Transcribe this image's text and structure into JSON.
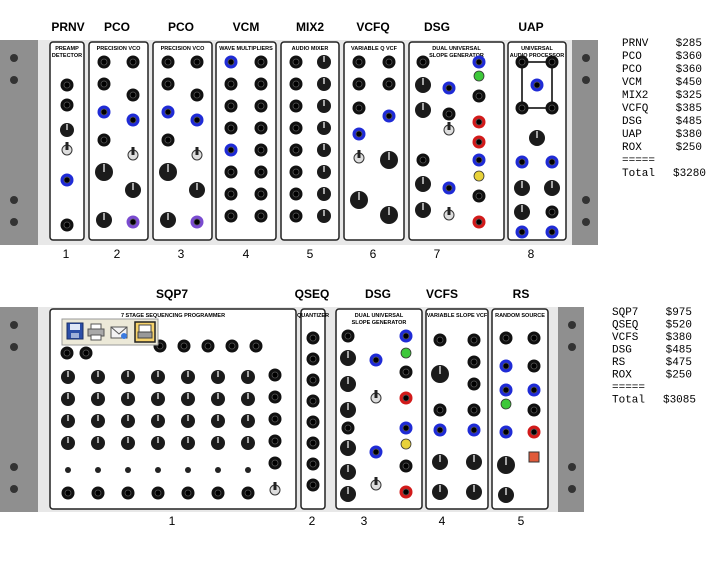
{
  "row1": {
    "module_labels": [
      "PRNV",
      "PCO",
      "PCO",
      "VCM",
      "MIX2",
      "VCFQ",
      "DSG",
      "UAP"
    ],
    "numbers": [
      "1",
      "2",
      "3",
      "4",
      "5",
      "6",
      "7",
      "8"
    ],
    "panel_titles": [
      [
        "PREAMP",
        "DETECTOR"
      ],
      [
        "PRECISION VCO"
      ],
      [
        "PRECISION VCO"
      ],
      [
        "WAVE MULTIPLIERS"
      ],
      [
        "AUDIO MIXER"
      ],
      [
        "VARIABLE Q VCF"
      ],
      [
        "DUAL UNIVERSAL",
        "SLOPE GENERATOR"
      ],
      [
        "UNIVERSAL",
        "AUDIO PROCESSOR"
      ]
    ],
    "price_list": [
      {
        "name": "PRNV",
        "price": "$285"
      },
      {
        "name": "PCO",
        "price": "$360"
      },
      {
        "name": "PCO",
        "price": "$360"
      },
      {
        "name": "VCM",
        "price": "$450"
      },
      {
        "name": "MIX2",
        "price": "$325"
      },
      {
        "name": "VCFQ",
        "price": "$385"
      },
      {
        "name": "DSG",
        "price": "$485"
      },
      {
        "name": "UAP",
        "price": "$380"
      },
      {
        "name": "ROX",
        "price": "$250"
      }
    ],
    "separator": "=====",
    "total_label": "Total",
    "total_value": "$3280"
  },
  "row2": {
    "module_labels": [
      "SQP7",
      "QSEQ",
      "DSG",
      "VCFS",
      "RS"
    ],
    "numbers": [
      "1",
      "2",
      "3",
      "4",
      "5"
    ],
    "panel_titles": [
      [
        "7 STAGE SEQUENCING PROGRAMMER"
      ],
      [
        "QUANTIZER"
      ],
      [
        "DUAL UNIVERSAL",
        "SLOPE GENERATOR"
      ],
      [
        "VARIABLE SLOPE VCF"
      ],
      [
        "RANDOM SOURCE"
      ]
    ],
    "price_list": [
      {
        "name": "SQP7",
        "price": "$975"
      },
      {
        "name": "QSEQ",
        "price": "$520"
      },
      {
        "name": "VCFS",
        "price": "$380"
      },
      {
        "name": "DSG",
        "price": "$485"
      },
      {
        "name": "RS",
        "price": "$475"
      },
      {
        "name": "ROX",
        "price": "$250"
      }
    ],
    "separator": "=====",
    "total_label": "Total",
    "total_value": "$3085"
  },
  "toolbar": {
    "icons": [
      "save-icon",
      "print-icon",
      "email-icon",
      "print-preview-icon"
    ]
  },
  "colors": {
    "rack_ear": "#8c8c8c",
    "rack_bg": "#e6e6e6",
    "panel": "#ffffff",
    "jack_blue": "#1f2bd6",
    "jack_red": "#d21a1a",
    "led_green": "#3ec83a",
    "led_yellow": "#e8d23a",
    "knob": "#1b1b1b"
  }
}
